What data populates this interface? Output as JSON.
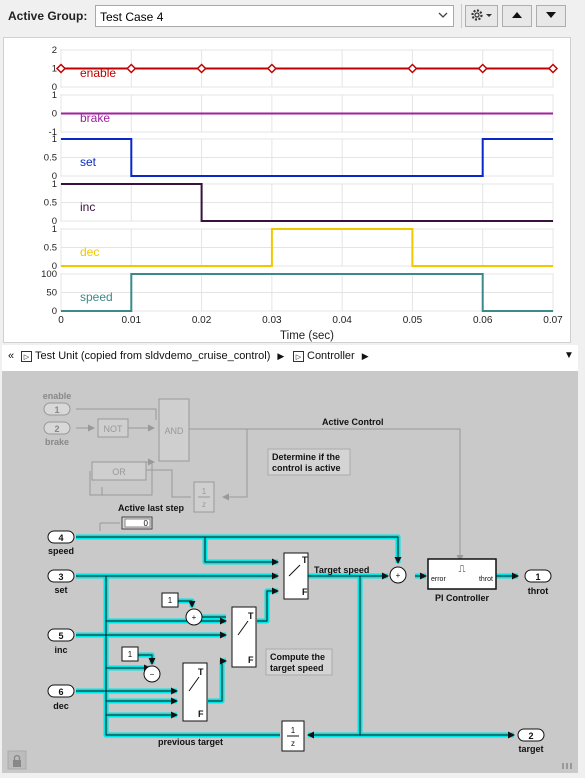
{
  "toolbar": {
    "group_label": "Active Group:",
    "group_value": "Test Case 4",
    "settings_icon": "gear-icon",
    "up_icon": "triangle-up-icon",
    "down_icon": "triangle-down-icon"
  },
  "chart_data": {
    "type": "line",
    "xlabel": "Time (sec)",
    "xlim": [
      0,
      0.07
    ],
    "x_ticks": [
      "0",
      "0.01",
      "0.02",
      "0.03",
      "0.04",
      "0.05",
      "0.06",
      "0.07"
    ],
    "series": [
      {
        "name": "enable",
        "color": "#c00000",
        "yticks": [
          "2",
          "1",
          "0"
        ],
        "x": [
          0,
          0.07
        ],
        "y": [
          1,
          1
        ],
        "markers": [
          0,
          0.01,
          0.02,
          0.03,
          0.05,
          0.06,
          0.07
        ]
      },
      {
        "name": "brake",
        "color": "#a020a0",
        "yticks": [
          "1",
          "0",
          "-1"
        ],
        "x": [
          0,
          0.07
        ],
        "y": [
          0,
          0
        ]
      },
      {
        "name": "set",
        "color": "#0a28c8",
        "yticks": [
          "1",
          "0.5",
          "0"
        ],
        "x": [
          0,
          0.01,
          0.01,
          0.06,
          0.06,
          0.07
        ],
        "y": [
          1,
          1,
          0,
          0,
          1,
          1
        ]
      },
      {
        "name": "inc",
        "color": "#3a1040",
        "yticks": [
          "1",
          "0.5",
          "0"
        ],
        "x": [
          0,
          0.02,
          0.02,
          0.07
        ],
        "y": [
          1,
          1,
          0,
          0
        ]
      },
      {
        "name": "dec",
        "color": "#f0c800",
        "yticks": [
          "1",
          "0.5",
          "0"
        ],
        "x": [
          0,
          0.03,
          0.03,
          0.05,
          0.05,
          0.07
        ],
        "y": [
          0,
          0,
          1,
          1,
          0,
          0
        ]
      },
      {
        "name": "speed",
        "color": "#3a8a8a",
        "yticks": [
          "100",
          "50",
          "0"
        ],
        "x": [
          0,
          0.01,
          0.01,
          0.06,
          0.06,
          0.07
        ],
        "y": [
          0,
          0,
          100,
          100,
          0,
          0
        ]
      }
    ]
  },
  "breadcrumb": {
    "root": "Test Unit (copied from sldvdemo_cruise_control)",
    "child": "Controller",
    "collapse_glyph": "«",
    "sep_glyph": "▶",
    "menu_glyph": "▼"
  },
  "diagram": {
    "inports": [
      {
        "num": "1",
        "label": "enable"
      },
      {
        "num": "2",
        "label": "brake"
      },
      {
        "num": "4",
        "label": "speed"
      },
      {
        "num": "3",
        "label": "set"
      },
      {
        "num": "5",
        "label": "inc"
      },
      {
        "num": "6",
        "label": "dec"
      }
    ],
    "outports": [
      {
        "num": "1",
        "label": "throt"
      },
      {
        "num": "2",
        "label": "target"
      }
    ],
    "not_block": "NOT",
    "and_block": "AND",
    "or_block": "OR",
    "unit_delay_num": "1",
    "unit_delay_den": "z",
    "display_value": "0",
    "const1": "1",
    "const2": "1",
    "switch_true": "T",
    "switch_false": "F",
    "pi_label": "PI Controller",
    "pi_in": "error",
    "pi_out": "throt",
    "pi_icon": "⎍",
    "labels": {
      "active_control": "Active Control",
      "active_last_step": "Active last step",
      "determine": [
        "Determine if the",
        "control is active"
      ],
      "target_speed": "Target speed",
      "compute": [
        "Compute the",
        "target speed"
      ],
      "previous_target": "previous target"
    },
    "lock_icon": "lock-icon"
  }
}
